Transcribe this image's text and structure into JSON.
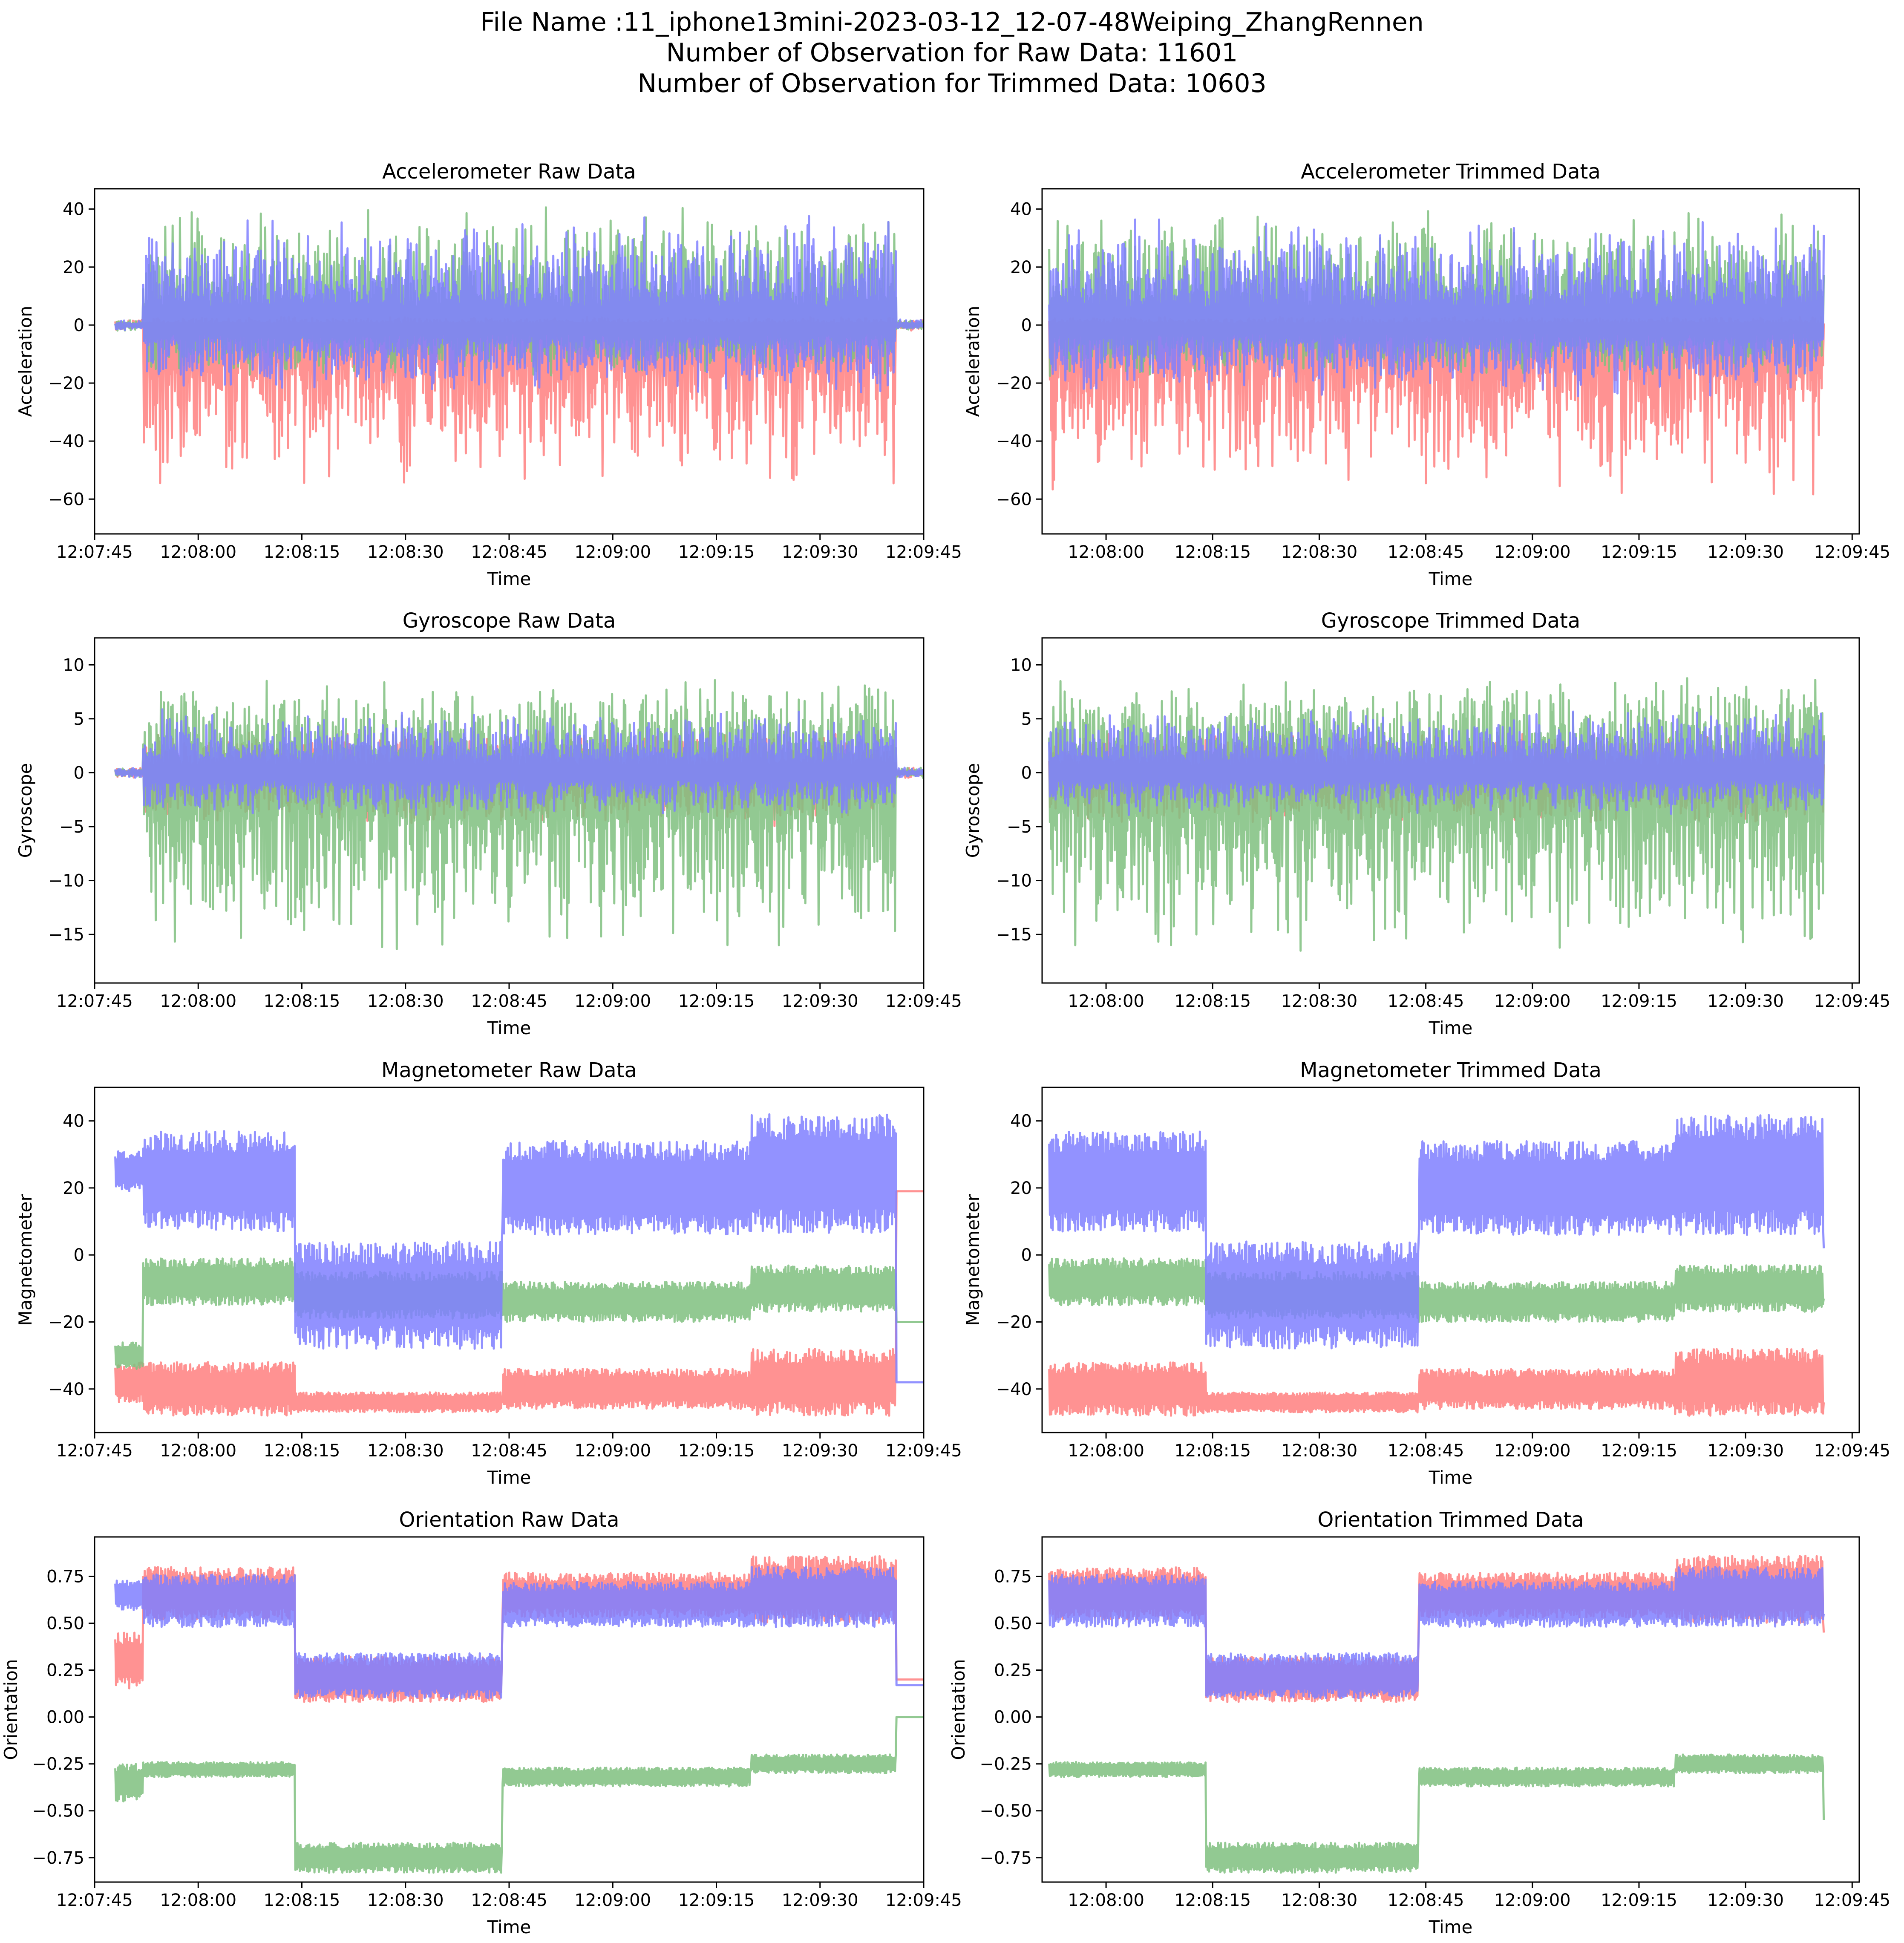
{
  "figure": {
    "suptitle_lines": [
      "File Name :11_iphone13mini-2023-03-12_12-07-48Weiping_ZhangRennen",
      "Number of Observation for Raw Data: 11601",
      "Number of Observation for Trimmed Data: 10603"
    ]
  },
  "colors": {
    "x": "#ff7f7f",
    "y": "#7fbf7f",
    "z": "#7f7fff",
    "overlap": "#3d3d99"
  },
  "chart_data": [
    {
      "type": "line",
      "title": "Accelerometer Raw Data",
      "xlabel": "Time",
      "ylabel": "Acceleration",
      "xlim": [
        "12:07:45",
        "12:09:45"
      ],
      "ylim": [
        -72,
        47
      ],
      "xticks": [
        "12:07:45",
        "12:08:00",
        "12:08:15",
        "12:08:30",
        "12:08:45",
        "12:09:00",
        "12:09:15",
        "12:09:30",
        "12:09:45"
      ],
      "yticks": [
        -60,
        -40,
        -20,
        0,
        20,
        40
      ],
      "data_range": [
        "12:07:48",
        "12:09:45"
      ],
      "active_range": [
        "12:07:52",
        "12:09:41"
      ],
      "series": [
        {
          "color": "#ff7f7f",
          "envelope": [
            [
              -2,
              2
            ],
            [
              -60,
              3
            ]
          ]
        },
        {
          "color": "#7fbf7f",
          "envelope": [
            [
              -2,
              2
            ],
            [
              -18,
              42
            ]
          ]
        },
        {
          "color": "#7f7fff",
          "envelope": [
            [
              -2,
              2
            ],
            [
              -25,
              38
            ]
          ]
        }
      ]
    },
    {
      "type": "line",
      "title": "Accelerometer Trimmed Data",
      "xlabel": "Time",
      "ylabel": "Acceleration",
      "xlim": [
        "12:07:51",
        "12:09:46"
      ],
      "ylim": [
        -72,
        47
      ],
      "xticks": [
        "12:08:00",
        "12:08:15",
        "12:08:30",
        "12:08:45",
        "12:09:00",
        "12:09:15",
        "12:09:30",
        "12:09:45"
      ],
      "yticks": [
        -60,
        -40,
        -20,
        0,
        20,
        40
      ],
      "data_range": [
        "12:07:52",
        "12:09:41"
      ],
      "active_range": [
        "12:07:52",
        "12:09:41"
      ],
      "series": [
        {
          "color": "#ff7f7f",
          "envelope": [
            [
              -2,
              2
            ],
            [
              -60,
              3
            ]
          ]
        },
        {
          "color": "#7fbf7f",
          "envelope": [
            [
              -2,
              2
            ],
            [
              -18,
              42
            ]
          ]
        },
        {
          "color": "#7f7fff",
          "envelope": [
            [
              -2,
              2
            ],
            [
              -25,
              38
            ]
          ]
        }
      ]
    },
    {
      "type": "line",
      "title": "Gyroscope Raw Data",
      "xlabel": "Time",
      "ylabel": "Gyroscope",
      "xlim": [
        "12:07:45",
        "12:09:45"
      ],
      "ylim": [
        -19.5,
        12.5
      ],
      "xticks": [
        "12:07:45",
        "12:08:00",
        "12:08:15",
        "12:08:30",
        "12:08:45",
        "12:09:00",
        "12:09:15",
        "12:09:30",
        "12:09:45"
      ],
      "yticks": [
        -15,
        -10,
        -5,
        0,
        5,
        10
      ],
      "data_range": [
        "12:07:48",
        "12:09:45"
      ],
      "active_range": [
        "12:07:52",
        "12:09:41"
      ],
      "series": [
        {
          "color": "#ff7f7f",
          "envelope": [
            [
              -0.5,
              0.5
            ],
            [
              -5,
              4
            ]
          ]
        },
        {
          "color": "#7fbf7f",
          "envelope": [
            [
              -0.5,
              0.5
            ],
            [
              -17,
              9
            ]
          ]
        },
        {
          "color": "#7f7fff",
          "envelope": [
            [
              -0.5,
              0.5
            ],
            [
              -4,
              6
            ]
          ]
        }
      ]
    },
    {
      "type": "line",
      "title": "Gyroscope Trimmed Data",
      "xlabel": "Time",
      "ylabel": "Gyroscope",
      "xlim": [
        "12:07:51",
        "12:09:46"
      ],
      "ylim": [
        -19.5,
        12.5
      ],
      "xticks": [
        "12:08:00",
        "12:08:15",
        "12:08:30",
        "12:08:45",
        "12:09:00",
        "12:09:15",
        "12:09:30",
        "12:09:45"
      ],
      "yticks": [
        -15,
        -10,
        -5,
        0,
        5,
        10
      ],
      "data_range": [
        "12:07:52",
        "12:09:41"
      ],
      "active_range": [
        "12:07:52",
        "12:09:41"
      ],
      "series": [
        {
          "color": "#ff7f7f",
          "envelope": [
            [
              -0.5,
              0.5
            ],
            [
              -5,
              4
            ]
          ]
        },
        {
          "color": "#7fbf7f",
          "envelope": [
            [
              -0.5,
              0.5
            ],
            [
              -17,
              9
            ]
          ]
        },
        {
          "color": "#7f7fff",
          "envelope": [
            [
              -0.5,
              0.5
            ],
            [
              -4,
              6
            ]
          ]
        }
      ]
    },
    {
      "type": "line",
      "title": "Magnetometer Raw Data",
      "xlabel": "Time",
      "ylabel": "Magnetometer",
      "xlim": [
        "12:07:45",
        "12:09:45"
      ],
      "ylim": [
        -53,
        50
      ],
      "xticks": [
        "12:07:45",
        "12:08:00",
        "12:08:15",
        "12:08:30",
        "12:08:45",
        "12:09:00",
        "12:09:15",
        "12:09:30",
        "12:09:45"
      ],
      "yticks": [
        -40,
        -20,
        0,
        20,
        40
      ],
      "data_range": [
        "12:07:48",
        "12:09:45"
      ],
      "series": [
        {
          "color": "#ff7f7f",
          "segments": [
            [
              "12:07:48",
              -38,
              6
            ],
            [
              "12:07:52",
              -40,
              8
            ],
            [
              "12:08:14",
              -44,
              3
            ],
            [
              "12:08:44",
              -40,
              6
            ],
            [
              "12:09:20",
              -38,
              10
            ],
            [
              "12:09:41",
              -40,
              8
            ]
          ],
          "end": [
            19,
            0
          ]
        },
        {
          "color": "#7fbf7f",
          "segments": [
            [
              "12:07:48",
              -30,
              4
            ],
            [
              "12:07:52",
              -8,
              7
            ],
            [
              "12:08:14",
              -12,
              7
            ],
            [
              "12:08:44",
              -14,
              6
            ],
            [
              "12:09:20",
              -10,
              7
            ],
            [
              "12:09:41",
              -12,
              6
            ]
          ],
          "end": [
            -20,
            0
          ]
        },
        {
          "color": "#7f7fff",
          "segments": [
            [
              "12:07:48",
              25,
              6
            ],
            [
              "12:07:52",
              22,
              15
            ],
            [
              "12:08:14",
              -12,
              16
            ],
            [
              "12:08:44",
              20,
              14
            ],
            [
              "12:09:20",
              24,
              18
            ],
            [
              "12:09:41",
              20,
              18
            ]
          ],
          "end": [
            -38,
            0
          ]
        }
      ]
    },
    {
      "type": "line",
      "title": "Magnetometer Trimmed Data",
      "xlabel": "Time",
      "ylabel": "Magnetometer",
      "xlim": [
        "12:07:51",
        "12:09:46"
      ],
      "ylim": [
        -53,
        50
      ],
      "xticks": [
        "12:08:00",
        "12:08:15",
        "12:08:30",
        "12:08:45",
        "12:09:00",
        "12:09:15",
        "12:09:30",
        "12:09:45"
      ],
      "yticks": [
        -40,
        -20,
        0,
        20,
        40
      ],
      "data_range": [
        "12:07:52",
        "12:09:41"
      ],
      "series": [
        {
          "color": "#ff7f7f",
          "segments": [
            [
              "12:07:52",
              -40,
              8
            ],
            [
              "12:08:14",
              -44,
              3
            ],
            [
              "12:08:44",
              -40,
              6
            ],
            [
              "12:09:20",
              -38,
              10
            ],
            [
              "12:09:41",
              -40,
              8
            ]
          ],
          "end": [
            -44,
            0
          ]
        },
        {
          "color": "#7fbf7f",
          "segments": [
            [
              "12:07:52",
              -8,
              7
            ],
            [
              "12:08:14",
              -12,
              7
            ],
            [
              "12:08:44",
              -14,
              6
            ],
            [
              "12:09:20",
              -10,
              7
            ],
            [
              "12:09:41",
              -12,
              6
            ]
          ],
          "end": [
            -13,
            0
          ]
        },
        {
          "color": "#7f7fff",
          "segments": [
            [
              "12:07:52",
              22,
              15
            ],
            [
              "12:08:14",
              -12,
              16
            ],
            [
              "12:08:44",
              20,
              14
            ],
            [
              "12:09:20",
              24,
              18
            ],
            [
              "12:09:41",
              20,
              18
            ]
          ],
          "end": [
            2,
            0
          ]
        }
      ]
    },
    {
      "type": "line",
      "title": "Orientation Raw Data",
      "xlabel": "Time",
      "ylabel": "Orientation",
      "xlim": [
        "12:07:45",
        "12:09:45"
      ],
      "ylim": [
        -0.88,
        0.96
      ],
      "xticks": [
        "12:07:45",
        "12:08:00",
        "12:08:15",
        "12:08:30",
        "12:08:45",
        "12:09:00",
        "12:09:15",
        "12:09:30",
        "12:09:45"
      ],
      "yticks": [
        -0.75,
        -0.5,
        -0.25,
        0.0,
        0.25,
        0.5,
        0.75
      ],
      "data_range": [
        "12:07:48",
        "12:09:45"
      ],
      "series": [
        {
          "color": "#ff7f7f",
          "segments": [
            [
              "12:07:48",
              0.3,
              0.15
            ],
            [
              "12:07:52",
              0.66,
              0.14
            ],
            [
              "12:08:14",
              0.2,
              0.12
            ],
            [
              "12:08:44",
              0.65,
              0.12
            ],
            [
              "12:09:20",
              0.68,
              0.18
            ],
            [
              "12:09:41",
              0.65,
              0.12
            ]
          ],
          "end": [
            0.2,
            0
          ]
        },
        {
          "color": "#7fbf7f",
          "segments": [
            [
              "12:07:48",
              -0.35,
              0.1
            ],
            [
              "12:07:52",
              -0.28,
              0.04
            ],
            [
              "12:08:14",
              -0.75,
              0.08
            ],
            [
              "12:08:44",
              -0.32,
              0.05
            ],
            [
              "12:09:20",
              -0.25,
              0.05
            ],
            [
              "12:09:41",
              -0.3,
              0.05
            ]
          ],
          "end": [
            0.0,
            0
          ]
        },
        {
          "color": "#7f7fff",
          "segments": [
            [
              "12:07:48",
              0.65,
              0.08
            ],
            [
              "12:07:52",
              0.62,
              0.14
            ],
            [
              "12:08:14",
              0.22,
              0.12
            ],
            [
              "12:08:44",
              0.6,
              0.12
            ],
            [
              "12:09:20",
              0.64,
              0.16
            ],
            [
              "12:09:41",
              0.6,
              0.12
            ]
          ],
          "end": [
            0.17,
            0
          ]
        }
      ]
    },
    {
      "type": "line",
      "title": "Orientation Trimmed Data",
      "xlabel": "Time",
      "ylabel": "Orientation",
      "xlim": [
        "12:07:51",
        "12:09:46"
      ],
      "ylim": [
        -0.88,
        0.96
      ],
      "xticks": [
        "12:08:00",
        "12:08:15",
        "12:08:30",
        "12:08:45",
        "12:09:00",
        "12:09:15",
        "12:09:30",
        "12:09:45"
      ],
      "yticks": [
        -0.75,
        -0.5,
        -0.25,
        0.0,
        0.25,
        0.5,
        0.75
      ],
      "data_range": [
        "12:07:52",
        "12:09:41"
      ],
      "series": [
        {
          "color": "#ff7f7f",
          "segments": [
            [
              "12:07:52",
              0.66,
              0.14
            ],
            [
              "12:08:14",
              0.2,
              0.12
            ],
            [
              "12:08:44",
              0.65,
              0.12
            ],
            [
              "12:09:20",
              0.68,
              0.18
            ],
            [
              "12:09:41",
              0.65,
              0.12
            ]
          ],
          "end": [
            0.45,
            0
          ]
        },
        {
          "color": "#7fbf7f",
          "segments": [
            [
              "12:07:52",
              -0.28,
              0.04
            ],
            [
              "12:08:14",
              -0.75,
              0.08
            ],
            [
              "12:08:44",
              -0.32,
              0.05
            ],
            [
              "12:09:20",
              -0.25,
              0.05
            ],
            [
              "12:09:41",
              -0.3,
              0.05
            ]
          ],
          "end": [
            -0.55,
            0
          ]
        },
        {
          "color": "#7f7fff",
          "segments": [
            [
              "12:07:52",
              0.62,
              0.14
            ],
            [
              "12:08:14",
              0.22,
              0.12
            ],
            [
              "12:08:44",
              0.6,
              0.12
            ],
            [
              "12:09:20",
              0.64,
              0.16
            ],
            [
              "12:09:41",
              0.6,
              0.12
            ]
          ],
          "end": [
            0.55,
            0
          ]
        }
      ]
    }
  ]
}
